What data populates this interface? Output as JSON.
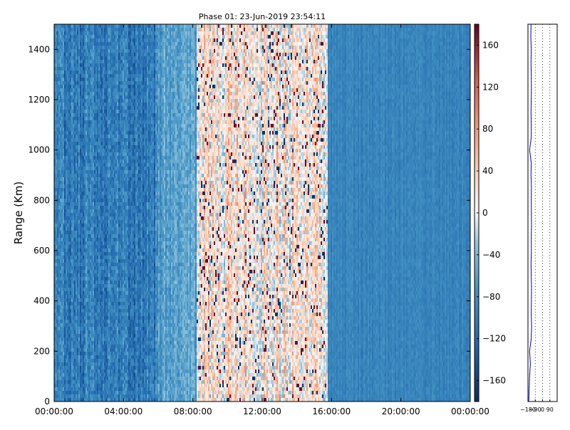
{
  "chart_data": [
    {
      "type": "heatmap",
      "title": "Phase 01: 23-Jun-2019 23:54:11",
      "ylabel": "Range (Km)",
      "xlabel": "",
      "x_ticks": [
        "00:00:00",
        "04:00:00",
        "08:00:00",
        "12:00:00",
        "16:00:00",
        "20:00:00",
        "00:00:00"
      ],
      "x_range_hours": [
        0,
        24
      ],
      "y_ticks": [
        0,
        200,
        400,
        600,
        800,
        1000,
        1200,
        1400
      ],
      "ylim": [
        0,
        1500
      ],
      "grid": false,
      "colormap": "RdBu_r",
      "colors": {
        "low": "#053061",
        "mid": "#f7f7f7",
        "high": "#67001f"
      },
      "colorbar": {
        "ticks": [
          -160,
          -120,
          -80,
          -40,
          0,
          40,
          80,
          120,
          160
        ],
        "range": [
          -180,
          180
        ]
      },
      "time_regimes": [
        {
          "start_hour": 0,
          "end_hour": 6,
          "mean_phase": -100,
          "noise": "high"
        },
        {
          "start_hour": 6,
          "end_hour": 8.2,
          "mean_phase": -65,
          "noise": "medium"
        },
        {
          "start_hour": 8.2,
          "end_hour": 15.8,
          "mean_phase": 20,
          "noise": "very_high"
        },
        {
          "start_hour": 15.8,
          "end_hour": 24,
          "mean_phase": -90,
          "noise": "low"
        }
      ]
    },
    {
      "type": "line",
      "title": "",
      "xlabel": "",
      "ylabel": "",
      "x_ticks": [
        -180,
        -90,
        0,
        90
      ],
      "xlim": [
        -180,
        180
      ],
      "ylim": [
        0,
        1500
      ],
      "grid": true,
      "line_color": "#0000cc",
      "series": [
        {
          "y": [
            0,
            50,
            100,
            150,
            200,
            250,
            300,
            350,
            400,
            450,
            500,
            550,
            600,
            650,
            700,
            750,
            800,
            850,
            900,
            950,
            1000,
            1050,
            1100,
            1150,
            1200,
            1250,
            1300,
            1350,
            1400,
            1450,
            1500
          ],
          "x": [
            -170,
            -165,
            -160,
            -150,
            -160,
            -140,
            -135,
            -140,
            -138,
            -136,
            -140,
            -142,
            -138,
            -140,
            -136,
            -138,
            -140,
            -138,
            -142,
            -140,
            -160,
            -140,
            -140,
            -142,
            -140,
            -138,
            -140,
            -142,
            -140,
            -145,
            -142
          ]
        }
      ]
    }
  ]
}
